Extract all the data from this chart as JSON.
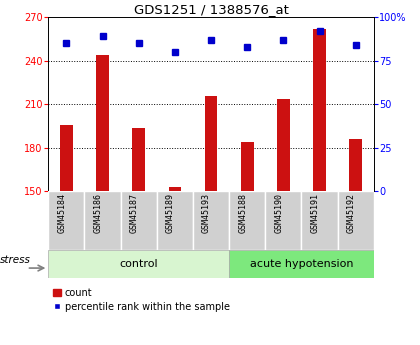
{
  "title": "GDS1251 / 1388576_at",
  "samples": [
    "GSM45184",
    "GSM45186",
    "GSM45187",
    "GSM45189",
    "GSM45193",
    "GSM45188",
    "GSM45190",
    "GSM45191",
    "GSM45192"
  ],
  "counts": [
    196,
    244,
    194,
    153,
    216,
    184,
    214,
    262,
    186
  ],
  "percentiles": [
    85,
    89,
    85,
    80,
    87,
    83,
    87,
    92,
    84
  ],
  "ylim_left": [
    150,
    270
  ],
  "ylim_right": [
    0,
    100
  ],
  "yticks_left": [
    150,
    180,
    210,
    240,
    270
  ],
  "yticks_right": [
    0,
    25,
    50,
    75,
    100
  ],
  "bar_color": "#cc1111",
  "dot_color": "#0000cc",
  "group1_label": "control",
  "group2_label": "acute hypotension",
  "group1_indices": [
    0,
    1,
    2,
    3,
    4
  ],
  "group2_indices": [
    5,
    6,
    7,
    8
  ],
  "group1_color": "#d8f5d0",
  "group2_color": "#7de87d",
  "stress_label": "stress",
  "legend_count": "count",
  "legend_pct": "percentile rank within the sample",
  "sample_bg_color": "#d0d0d0",
  "title_fontsize": 9.5,
  "tick_fontsize": 7,
  "sample_fontsize": 6,
  "group_fontsize": 8,
  "legend_fontsize": 7,
  "bar_width": 0.35
}
